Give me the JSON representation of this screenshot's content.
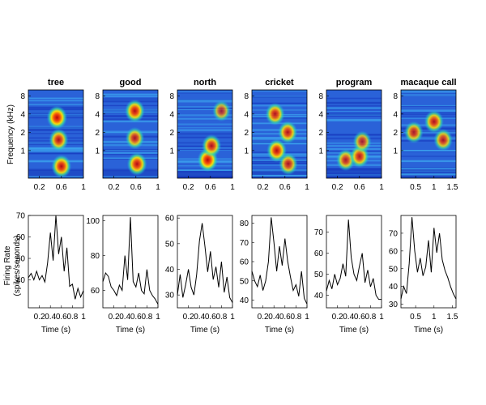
{
  "figure": {
    "spectrogram_ylabel": "Frequency (kHz)",
    "rate_ylabel_line1": "Firing Rate",
    "rate_ylabel_line2": "(spikes/seconds)",
    "rate_xlabel": "Time (s)"
  },
  "chart_data": [
    {
      "type": "heatmap",
      "role": "spectrogram",
      "title": "tree",
      "xlabel": "",
      "ylabel": "Frequency (kHz)",
      "x_ticks": [
        "0.2",
        "0.6",
        "1"
      ],
      "xlim": [
        0,
        1
      ],
      "y_ticks": [
        "1",
        "2",
        "4",
        "8"
      ],
      "y_scale": "log",
      "energy_blobs": [
        {
          "t": 0.52,
          "f_khz": 3.5,
          "intensity": 0.95
        },
        {
          "t": 0.55,
          "f_khz": 1.5,
          "intensity": 0.85
        },
        {
          "t": 0.6,
          "f_khz": 0.55,
          "intensity": 0.9
        }
      ]
    },
    {
      "type": "heatmap",
      "role": "spectrogram",
      "title": "good",
      "xlabel": "",
      "ylabel": "",
      "x_ticks": [
        "0.2",
        "0.6",
        "1"
      ],
      "xlim": [
        0,
        1
      ],
      "y_ticks": [
        "1",
        "2",
        "4",
        "8"
      ],
      "y_scale": "log",
      "energy_blobs": [
        {
          "t": 0.58,
          "f_khz": 4.5,
          "intensity": 0.9
        },
        {
          "t": 0.58,
          "f_khz": 1.6,
          "intensity": 0.8
        },
        {
          "t": 0.62,
          "f_khz": 0.6,
          "intensity": 0.9
        }
      ]
    },
    {
      "type": "heatmap",
      "role": "spectrogram",
      "title": "north",
      "xlabel": "",
      "ylabel": "",
      "x_ticks": [
        "0.2",
        "0.6",
        "1"
      ],
      "xlim": [
        0,
        1
      ],
      "y_ticks": [
        "1",
        "2",
        "4",
        "8"
      ],
      "y_scale": "log",
      "energy_blobs": [
        {
          "t": 0.55,
          "f_khz": 0.7,
          "intensity": 0.95
        },
        {
          "t": 0.62,
          "f_khz": 1.2,
          "intensity": 0.85
        },
        {
          "t": 0.8,
          "f_khz": 4.5,
          "intensity": 0.7
        }
      ]
    },
    {
      "type": "heatmap",
      "role": "spectrogram",
      "title": "cricket",
      "xlabel": "",
      "ylabel": "",
      "x_ticks": [
        "0.2",
        "0.6",
        "1"
      ],
      "xlim": [
        0,
        1
      ],
      "y_ticks": [
        "1",
        "2",
        "4",
        "8"
      ],
      "y_scale": "log",
      "energy_blobs": [
        {
          "t": 0.42,
          "f_khz": 4.0,
          "intensity": 0.85
        },
        {
          "t": 0.45,
          "f_khz": 1.0,
          "intensity": 0.9
        },
        {
          "t": 0.65,
          "f_khz": 2.0,
          "intensity": 0.85
        },
        {
          "t": 0.66,
          "f_khz": 0.6,
          "intensity": 0.8
        }
      ]
    },
    {
      "type": "heatmap",
      "role": "spectrogram",
      "title": "program",
      "xlabel": "",
      "ylabel": "",
      "x_ticks": [
        "0.2",
        "0.6",
        "1"
      ],
      "xlim": [
        0,
        1
      ],
      "y_ticks": [
        "1",
        "2",
        "4",
        "8"
      ],
      "y_scale": "log",
      "energy_blobs": [
        {
          "t": 0.35,
          "f_khz": 0.7,
          "intensity": 0.8
        },
        {
          "t": 0.6,
          "f_khz": 0.8,
          "intensity": 0.85
        },
        {
          "t": 0.65,
          "f_khz": 1.4,
          "intensity": 0.75
        }
      ]
    },
    {
      "type": "heatmap",
      "role": "spectrogram",
      "title": "macaque call",
      "xlabel": "",
      "ylabel": "",
      "x_ticks": [
        "0.5",
        "1",
        "1.5"
      ],
      "xlim": [
        0.1,
        1.6
      ],
      "y_ticks": [
        "1",
        "2",
        "4",
        "8"
      ],
      "y_scale": "log",
      "energy_blobs": [
        {
          "t": 0.45,
          "f_khz": 2.0,
          "intensity": 0.8
        },
        {
          "t": 1.0,
          "f_khz": 3.0,
          "intensity": 0.85
        },
        {
          "t": 1.25,
          "f_khz": 1.5,
          "intensity": 0.8
        }
      ]
    },
    {
      "type": "line",
      "role": "firing-rate",
      "xlabel": "Time (s)",
      "ylabel": "Firing Rate (spikes/seconds)",
      "x_ticks": [
        "0.2",
        "0.4",
        "0.6",
        "0.8",
        "1"
      ],
      "xlim": [
        0,
        1
      ],
      "y_ticks": [
        "40",
        "50",
        "60",
        "70"
      ],
      "ylim": [
        27,
        70
      ],
      "x": [
        0.0,
        0.05,
        0.1,
        0.15,
        0.2,
        0.25,
        0.3,
        0.35,
        0.4,
        0.45,
        0.5,
        0.55,
        0.6,
        0.65,
        0.7,
        0.75,
        0.8,
        0.85,
        0.9,
        0.95,
        1.0
      ],
      "y": [
        41,
        43,
        40,
        44,
        40,
        42,
        39,
        48,
        62,
        49,
        70,
        52,
        60,
        44,
        55,
        37,
        38,
        31,
        36,
        32,
        35
      ]
    },
    {
      "type": "line",
      "role": "firing-rate",
      "xlabel": "Time (s)",
      "ylabel": "",
      "x_ticks": [
        "0.2",
        "0.4",
        "0.6",
        "0.8",
        "1"
      ],
      "xlim": [
        0,
        1
      ],
      "y_ticks": [
        "60",
        "80",
        "100"
      ],
      "ylim": [
        50,
        103
      ],
      "x": [
        0.0,
        0.05,
        0.1,
        0.15,
        0.2,
        0.25,
        0.3,
        0.35,
        0.4,
        0.45,
        0.5,
        0.55,
        0.6,
        0.65,
        0.7,
        0.75,
        0.8,
        0.85,
        0.9,
        0.95,
        1.0
      ],
      "y": [
        65,
        70,
        68,
        62,
        60,
        57,
        63,
        60,
        80,
        66,
        102,
        65,
        62,
        70,
        60,
        58,
        72,
        60,
        57,
        55,
        52
      ]
    },
    {
      "type": "line",
      "role": "firing-rate",
      "xlabel": "Time (s)",
      "ylabel": "",
      "x_ticks": [
        "0.2",
        "0.4",
        "0.6",
        "0.8",
        "1"
      ],
      "xlim": [
        0,
        1
      ],
      "y_ticks": [
        "30",
        "40",
        "50",
        "60"
      ],
      "ylim": [
        25,
        61
      ],
      "x": [
        0.0,
        0.05,
        0.1,
        0.15,
        0.2,
        0.25,
        0.3,
        0.35,
        0.4,
        0.45,
        0.5,
        0.55,
        0.6,
        0.65,
        0.7,
        0.75,
        0.8,
        0.85,
        0.9,
        0.95,
        1.0
      ],
      "y": [
        30,
        38,
        29,
        34,
        40,
        33,
        30,
        38,
        51,
        58,
        49,
        39,
        47,
        36,
        41,
        33,
        43,
        31,
        37,
        29,
        27
      ]
    },
    {
      "type": "line",
      "role": "firing-rate",
      "xlabel": "Time (s)",
      "ylabel": "",
      "x_ticks": [
        "0.2",
        "0.4",
        "0.6",
        "0.8",
        "1"
      ],
      "xlim": [
        0,
        1
      ],
      "y_ticks": [
        "40",
        "50",
        "60",
        "70",
        "80"
      ],
      "ylim": [
        36,
        84
      ],
      "x": [
        0.0,
        0.05,
        0.1,
        0.15,
        0.2,
        0.25,
        0.3,
        0.35,
        0.4,
        0.45,
        0.5,
        0.55,
        0.6,
        0.65,
        0.7,
        0.75,
        0.8,
        0.85,
        0.9,
        0.95,
        1.0
      ],
      "y": [
        55,
        50,
        47,
        53,
        45,
        50,
        60,
        83,
        70,
        55,
        68,
        58,
        72,
        60,
        52,
        45,
        48,
        42,
        55,
        41,
        38
      ]
    },
    {
      "type": "line",
      "role": "firing-rate",
      "xlabel": "Time (s)",
      "ylabel": "",
      "x_ticks": [
        "0.2",
        "0.4",
        "0.6",
        "0.8",
        "1"
      ],
      "xlim": [
        0,
        1
      ],
      "y_ticks": [
        "40",
        "50",
        "60",
        "70"
      ],
      "ylim": [
        34,
        78
      ],
      "x": [
        0.0,
        0.05,
        0.1,
        0.15,
        0.2,
        0.25,
        0.3,
        0.35,
        0.4,
        0.45,
        0.5,
        0.55,
        0.6,
        0.65,
        0.7,
        0.75,
        0.8,
        0.85,
        0.9,
        0.95,
        1.0
      ],
      "y": [
        42,
        47,
        43,
        50,
        45,
        48,
        55,
        49,
        76,
        58,
        50,
        47,
        54,
        60,
        46,
        52,
        44,
        48,
        40,
        38,
        38
      ]
    },
    {
      "type": "line",
      "role": "firing-rate",
      "xlabel": "Time (s)",
      "ylabel": "",
      "x_ticks": [
        "0.5",
        "1",
        "1.5"
      ],
      "xlim": [
        0.1,
        1.6
      ],
      "y_ticks": [
        "30",
        "40",
        "50",
        "60",
        "70"
      ],
      "ylim": [
        28,
        80
      ],
      "x": [
        0.1,
        0.175,
        0.25,
        0.325,
        0.4,
        0.475,
        0.55,
        0.625,
        0.7,
        0.775,
        0.85,
        0.925,
        1.0,
        1.075,
        1.15,
        1.225,
        1.3,
        1.375,
        1.45,
        1.525,
        1.6
      ],
      "y": [
        33,
        40,
        36,
        53,
        79,
        60,
        48,
        56,
        46,
        51,
        66,
        48,
        73,
        59,
        70,
        55,
        49,
        45,
        40,
        36,
        33
      ]
    }
  ]
}
